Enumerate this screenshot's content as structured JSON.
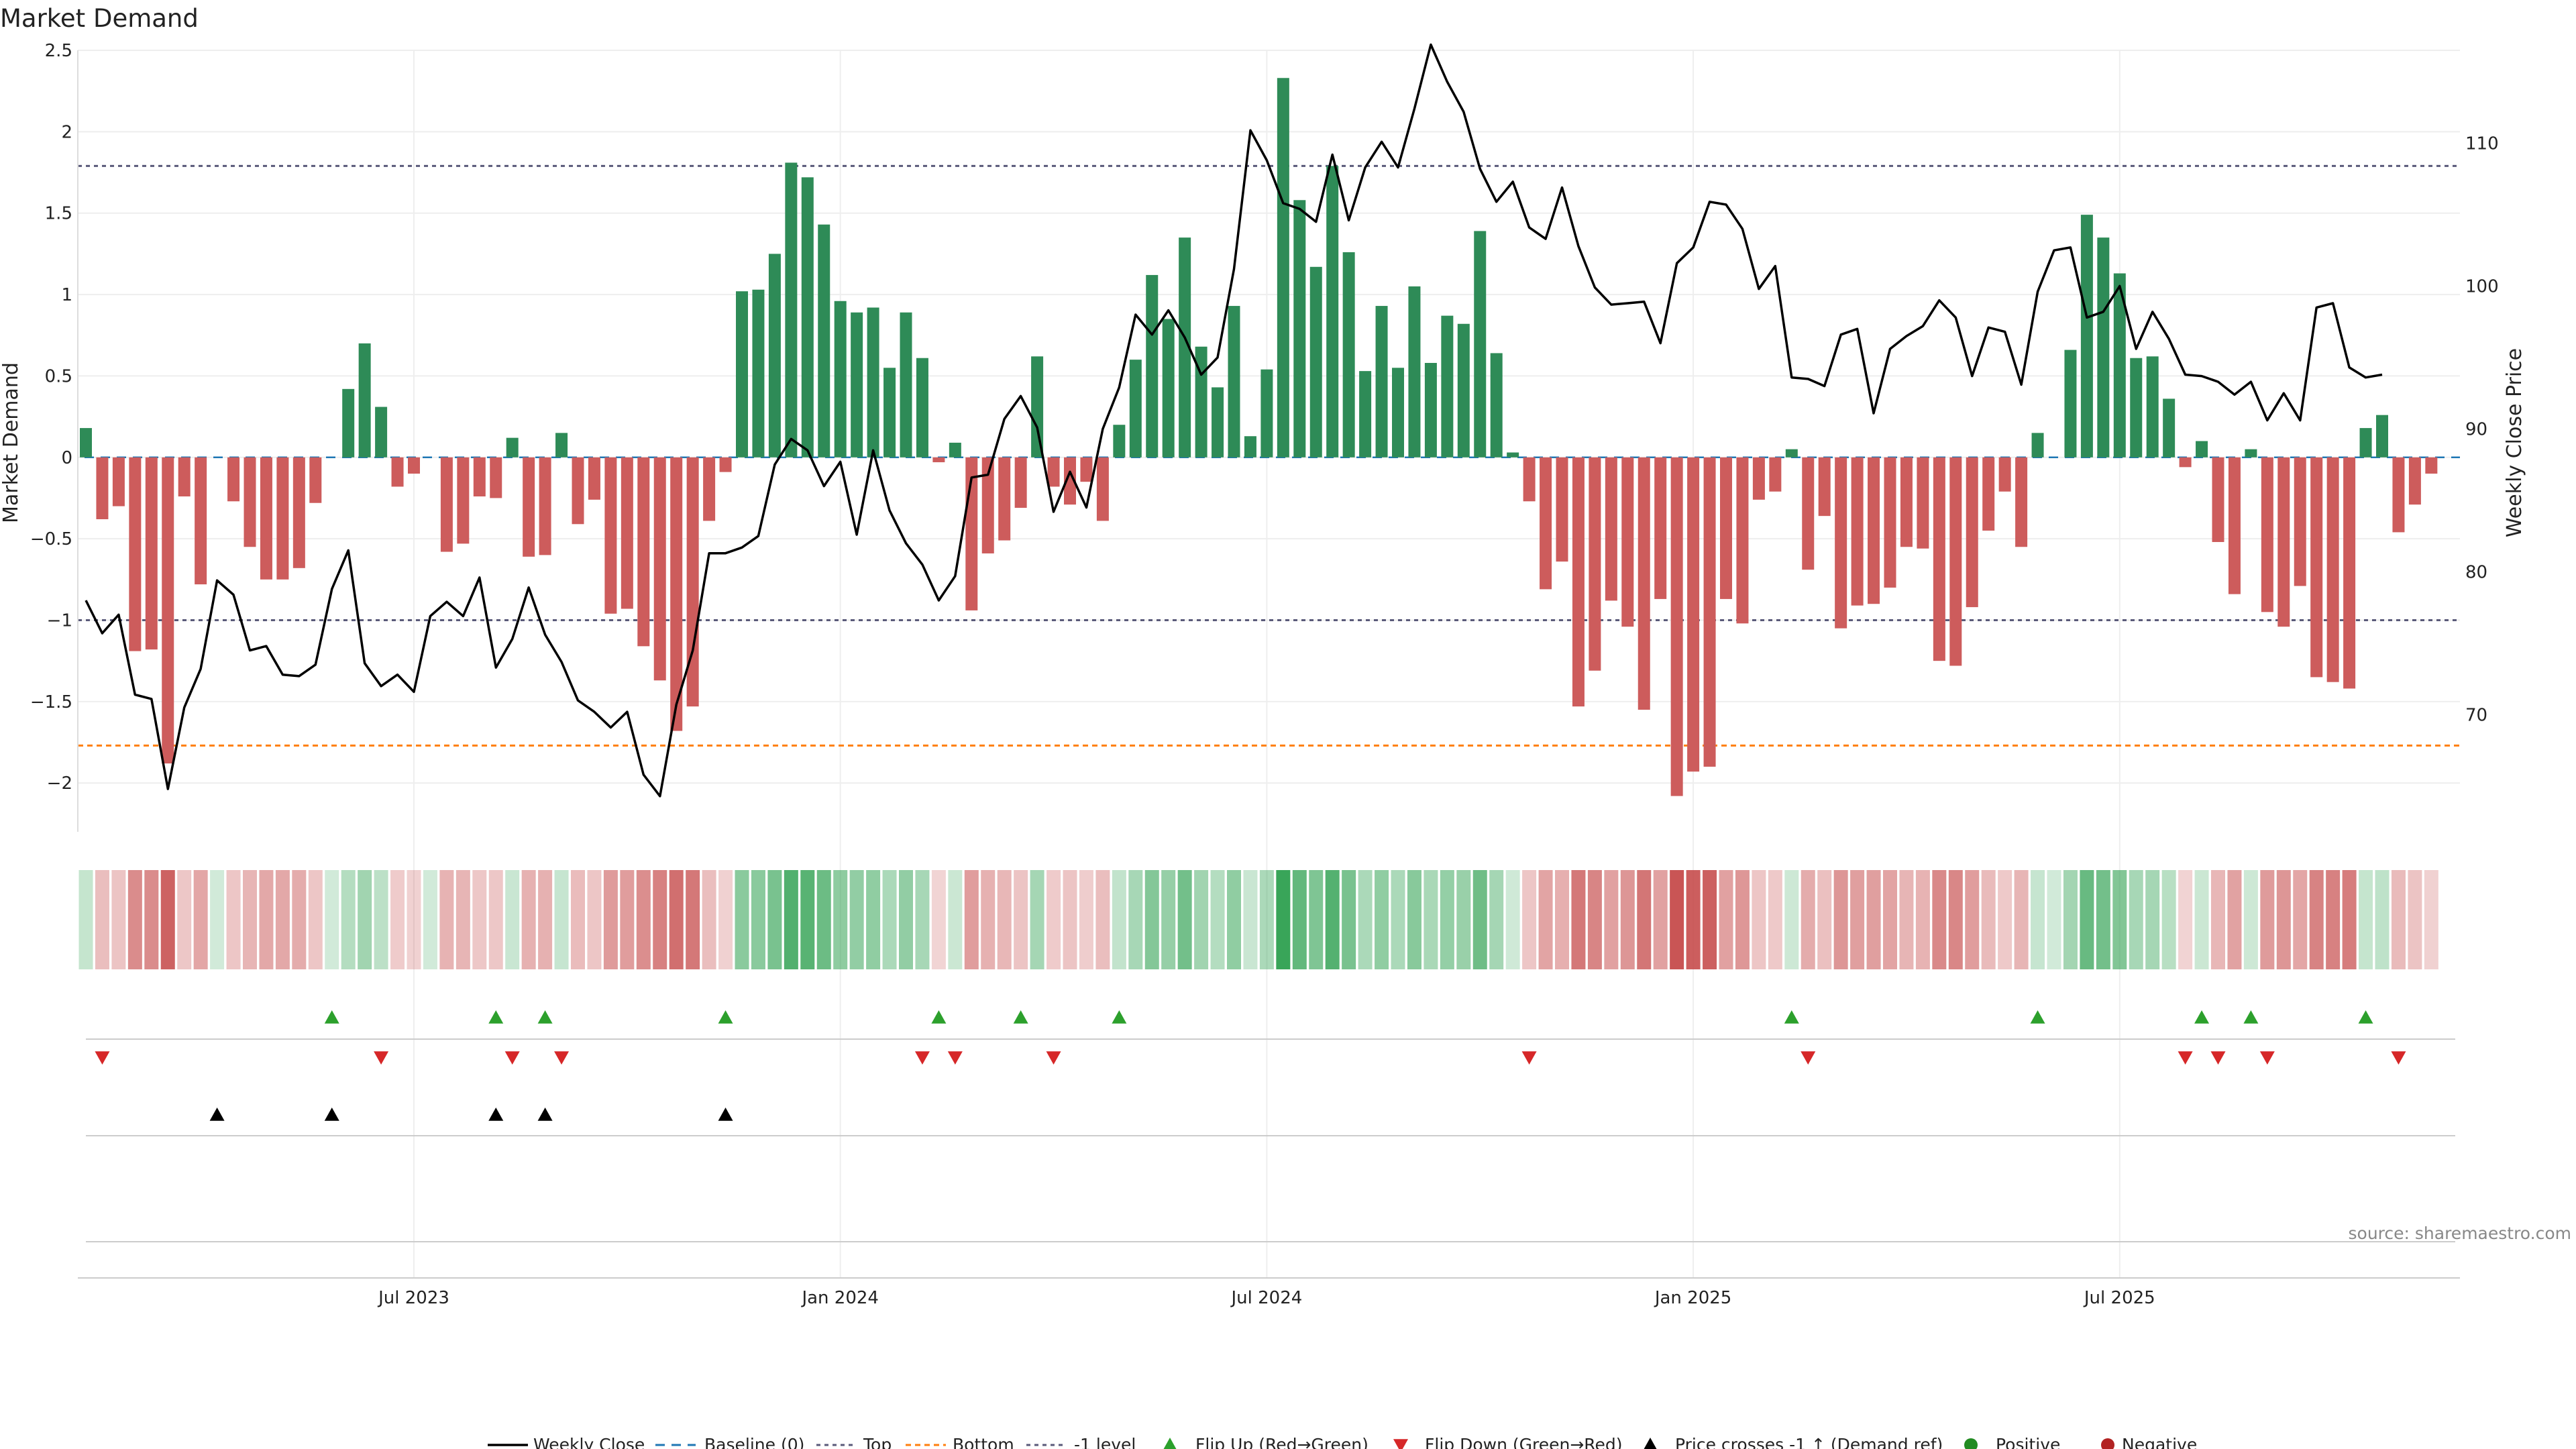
{
  "chart_data": {
    "type": "bar",
    "title": "Market Demand",
    "ylabel": "Market Demand",
    "y2label": "Weekly Close Price",
    "ylim": [
      -2.3,
      2.5
    ],
    "y2lim": [
      61.8,
      116.5
    ],
    "yticks": [
      -2,
      -1.5,
      -1,
      -0.5,
      0,
      0.5,
      1,
      1.5,
      2,
      2.5
    ],
    "yticklabels": [
      "−2",
      "−1.5",
      "−1",
      "−0.5",
      "0",
      "0.5",
      "1",
      "1.5",
      "2",
      "2.5"
    ],
    "y2ticks": [
      70,
      80,
      90,
      100,
      110
    ],
    "xticks": [
      {
        "index": 20,
        "label": "Jul 2023"
      },
      {
        "index": 46,
        "label": "Jan 2024"
      },
      {
        "index": 72,
        "label": "Jul 2024"
      },
      {
        "index": 98,
        "label": "Jan 2025"
      },
      {
        "index": 124,
        "label": "Jul 2025"
      }
    ],
    "reference_lines": {
      "top": 1.79,
      "minus_one": -1.0,
      "bottom": -1.77,
      "baseline": 0
    },
    "demand": [
      0.18,
      -0.38,
      -0.3,
      -1.19,
      -1.18,
      -1.88,
      -0.24,
      -0.78,
      0,
      -0.27,
      -0.55,
      -0.75,
      -0.75,
      -0.68,
      -0.28,
      0,
      0.42,
      0.7,
      0.31,
      -0.18,
      -0.1,
      0,
      -0.58,
      -0.53,
      -0.24,
      -0.25,
      0.12,
      -0.61,
      -0.6,
      0.15,
      -0.41,
      -0.26,
      -0.96,
      -0.93,
      -1.16,
      -1.37,
      -1.68,
      -1.53,
      -0.39,
      -0.09,
      1.02,
      1.03,
      1.25,
      1.81,
      1.72,
      1.43,
      0.96,
      0.89,
      0.92,
      0.55,
      0.89,
      0.61,
      -0.03,
      0.09,
      -0.94,
      -0.59,
      -0.51,
      -0.31,
      0.62,
      -0.18,
      -0.29,
      -0.15,
      -0.39,
      0.2,
      0.6,
      1.12,
      0.85,
      1.35,
      0.68,
      0.43,
      0.93,
      0.13,
      0.54,
      2.33,
      1.58,
      1.17,
      1.79,
      1.26,
      0.53,
      0.93,
      0.55,
      1.05,
      0.58,
      0.87,
      0.82,
      1.39,
      0.64,
      0.03,
      -0.27,
      -0.81,
      -0.64,
      -1.53,
      -1.31,
      -0.88,
      -1.04,
      -1.55,
      -0.87,
      -2.08,
      -1.93,
      -1.9,
      -0.87,
      -1.02,
      -0.26,
      -0.21,
      0.05,
      -0.69,
      -0.36,
      -1.05,
      -0.91,
      -0.9,
      -0.8,
      -0.55,
      -0.56,
      -1.25,
      -1.28,
      -0.92,
      -0.45,
      -0.21,
      -0.55,
      0.15,
      0,
      0.66,
      1.49,
      1.35,
      1.13,
      0.61,
      0.62,
      0.36,
      -0.06,
      0.1,
      -0.52,
      -0.84,
      0.05,
      -0.95,
      -1.04,
      -0.79,
      -1.35,
      -1.38,
      -1.42,
      0.18,
      0.26,
      -0.46,
      -0.29,
      -0.1
    ],
    "weekly_close": [
      78,
      75.7,
      77,
      71.4,
      71.1,
      64.8,
      70.5,
      73.2,
      79.4,
      78.4,
      74.5,
      74.8,
      72.8,
      72.7,
      73.5,
      78.8,
      81.5,
      73.6,
      72,
      72.8,
      71.6,
      76.9,
      77.9,
      76.9,
      79.6,
      73.3,
      75.3,
      78.9,
      75.6,
      73.7,
      71,
      70.2,
      69.1,
      70.2,
      65.8,
      64.3,
      70.7,
      74.5,
      81.3,
      81.3,
      81.7,
      82.5,
      87.5,
      89.3,
      88.5,
      86,
      87.7,
      82.6,
      88.5,
      84.3,
      82,
      80.5,
      78,
      79.7,
      86.6,
      86.8,
      90.7,
      92.3,
      90.1,
      84.2,
      87,
      84.5,
      90,
      92.9,
      98,
      96.6,
      98.3,
      96.4,
      93.8,
      95,
      101.2,
      110.9,
      108.8,
      105.8,
      105.4,
      104.5,
      109.2,
      104.6,
      108.3,
      110.1,
      108.3,
      112.4,
      116.9,
      114.3,
      112.2,
      108.2,
      105.9,
      107.3,
      104.1,
      103.3,
      106.9,
      102.8,
      99.9,
      98.7,
      98.8,
      98.9,
      96,
      101.6,
      102.7,
      105.9,
      105.7,
      104,
      99.8,
      101.4,
      93.6,
      93.5,
      93,
      96.6,
      97,
      91.1,
      95.6,
      96.5,
      97.2,
      99,
      97.8,
      93.7,
      97.1,
      96.8,
      93.1,
      99.6,
      102.5,
      102.7,
      97.8,
      98.2,
      100,
      95.6,
      98.2,
      96.3,
      93.8,
      93.7,
      93.3,
      92.4,
      93.3,
      90.6,
      92.5,
      90.6,
      98.5,
      98.8,
      94.3,
      93.6,
      93.8
    ],
    "flip_up_indices": [
      15,
      25,
      28,
      39,
      52,
      57,
      63,
      104,
      119,
      129,
      132,
      139
    ],
    "flip_down_indices": [
      1,
      18,
      26,
      29,
      51,
      53,
      59,
      88,
      105,
      128,
      130,
      133,
      141
    ],
    "cross_up_indices": [
      8,
      15,
      25,
      28,
      39
    ],
    "legend": [
      "Weekly Close",
      "Baseline (0)",
      "Top",
      "Bottom",
      "-1 level",
      "Flip Up (Red→Green)",
      "Flip Down (Green→Red)",
      "Price crosses -1 ↑ (Demand ref)",
      "Positive",
      "Negative"
    ],
    "legend_position": "bottom-center",
    "source": "source: sharemaestro.com",
    "colors": {
      "positive": "#2e8b57",
      "negative": "#cd5c5c",
      "line": "#000000",
      "baseline": "#1f77b4",
      "top": "#5a5a7a",
      "bottom": "#ff7f0e",
      "minus_one": "#5a5a7a",
      "flip_up": "#2ca02c",
      "flip_down": "#d62728",
      "cross": "#000000",
      "positive_dot": "#228b22",
      "negative_dot": "#b22222"
    }
  }
}
